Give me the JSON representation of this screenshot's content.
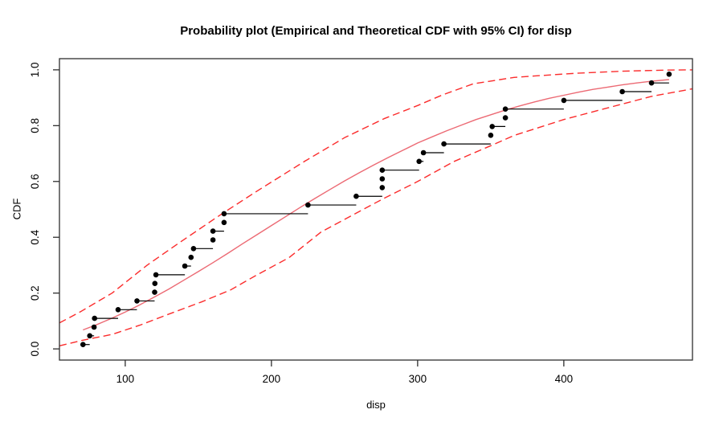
{
  "figure": {
    "title": "Probability plot (Empirical and Theoretical CDF with 95% CI) for disp",
    "xlabel": "disp",
    "ylabel": "CDF"
  },
  "chart_data": {
    "type": "line",
    "subtype": "empirical-cdf-steps-with-theoretical-cdf-and-95ci",
    "title": "Probability plot (Empirical and Theoretical CDF with 95% CI) for disp",
    "xlabel": "disp",
    "ylabel": "CDF",
    "xlim": [
      55,
      488
    ],
    "ylim": [
      -0.04,
      1.04
    ],
    "x_ticks": [
      100,
      200,
      300,
      400
    ],
    "y_ticks": [
      0.0,
      0.2,
      0.4,
      0.6,
      0.8,
      1.0
    ],
    "grid": false,
    "legend": "none",
    "colors": {
      "empirical": "#000000",
      "theoretical": "#ec6a74",
      "ci_band": "#fb2c2c",
      "box": "#2e2e2e"
    },
    "series": [
      {
        "name": "empirical-cdf-points",
        "type": "scatter-step",
        "color": "#000000",
        "points": [
          [
            71.1,
            0.0156
          ],
          [
            75.7,
            0.0469
          ],
          [
            78.7,
            0.0781
          ],
          [
            79,
            0.1094
          ],
          [
            95.1,
            0.1406
          ],
          [
            108,
            0.1719
          ],
          [
            120.1,
            0.2031
          ],
          [
            120.3,
            0.2344
          ],
          [
            121,
            0.2656
          ],
          [
            140.8,
            0.2969
          ],
          [
            145,
            0.3281
          ],
          [
            146.7,
            0.3594
          ],
          [
            160,
            0.3906
          ],
          [
            160,
            0.4219
          ],
          [
            167.6,
            0.4531
          ],
          [
            167.6,
            0.4844
          ],
          [
            225,
            0.5156
          ],
          [
            258,
            0.5469
          ],
          [
            275.8,
            0.5781
          ],
          [
            275.8,
            0.6094
          ],
          [
            275.8,
            0.6406
          ],
          [
            301,
            0.6719
          ],
          [
            304,
            0.7031
          ],
          [
            318,
            0.7344
          ],
          [
            350,
            0.7656
          ],
          [
            351,
            0.7969
          ],
          [
            360,
            0.8281
          ],
          [
            360,
            0.8594
          ],
          [
            400,
            0.8906
          ],
          [
            440,
            0.9219
          ],
          [
            460,
            0.9531
          ],
          [
            472,
            0.9844
          ]
        ]
      },
      {
        "name": "theoretical-cdf",
        "type": "line",
        "style": "solid",
        "color": "#ec6a74",
        "points": [
          [
            71.1,
            0.068
          ],
          [
            80,
            0.086
          ],
          [
            90,
            0.108
          ],
          [
            100,
            0.132
          ],
          [
            110,
            0.158
          ],
          [
            120,
            0.186
          ],
          [
            130,
            0.215
          ],
          [
            140,
            0.246
          ],
          [
            150,
            0.277
          ],
          [
            160,
            0.309
          ],
          [
            170,
            0.342
          ],
          [
            180,
            0.376
          ],
          [
            190,
            0.409
          ],
          [
            200,
            0.442
          ],
          [
            210,
            0.475
          ],
          [
            220,
            0.508
          ],
          [
            230,
            0.54
          ],
          [
            240,
            0.571
          ],
          [
            250,
            0.602
          ],
          [
            260,
            0.631
          ],
          [
            270,
            0.659
          ],
          [
            280,
            0.686
          ],
          [
            290,
            0.712
          ],
          [
            300,
            0.738
          ],
          [
            310,
            0.76
          ],
          [
            320,
            0.782
          ],
          [
            330,
            0.802
          ],
          [
            340,
            0.822
          ],
          [
            350,
            0.839
          ],
          [
            360,
            0.856
          ],
          [
            370,
            0.871
          ],
          [
            380,
            0.885
          ],
          [
            390,
            0.898
          ],
          [
            400,
            0.909
          ],
          [
            410,
            0.92
          ],
          [
            420,
            0.93
          ],
          [
            430,
            0.938
          ],
          [
            440,
            0.946
          ],
          [
            450,
            0.953
          ],
          [
            460,
            0.959
          ],
          [
            472,
            0.965
          ]
        ]
      },
      {
        "name": "ci-upper-95",
        "type": "line",
        "style": "dashed",
        "color": "#fb2c2c",
        "points": [
          [
            55,
            0.093
          ],
          [
            70,
            0.135
          ],
          [
            91,
            0.2
          ],
          [
            115,
            0.3
          ],
          [
            138,
            0.384
          ],
          [
            165,
            0.48
          ],
          [
            190,
            0.565
          ],
          [
            223,
            0.673
          ],
          [
            250,
            0.757
          ],
          [
            277,
            0.825
          ],
          [
            300,
            0.872
          ],
          [
            317,
            0.91
          ],
          [
            338,
            0.95
          ],
          [
            366,
            0.973
          ],
          [
            394,
            0.983
          ],
          [
            409,
            0.988
          ],
          [
            440,
            0.995
          ],
          [
            470,
            0.999
          ],
          [
            488,
            1.0
          ]
        ]
      },
      {
        "name": "ci-lower-95",
        "type": "line",
        "style": "dashed",
        "color": "#fb2c2c",
        "points": [
          [
            55,
            0.011
          ],
          [
            70,
            0.03
          ],
          [
            91,
            0.052
          ],
          [
            110,
            0.085
          ],
          [
            130,
            0.125
          ],
          [
            152,
            0.168
          ],
          [
            172,
            0.211
          ],
          [
            190,
            0.265
          ],
          [
            212,
            0.327
          ],
          [
            234,
            0.419
          ],
          [
            255,
            0.478
          ],
          [
            276,
            0.537
          ],
          [
            300,
            0.6
          ],
          [
            325,
            0.672
          ],
          [
            350,
            0.728
          ],
          [
            366,
            0.765
          ],
          [
            400,
            0.822
          ],
          [
            428,
            0.861
          ],
          [
            460,
            0.905
          ],
          [
            488,
            0.932
          ]
        ]
      }
    ]
  }
}
